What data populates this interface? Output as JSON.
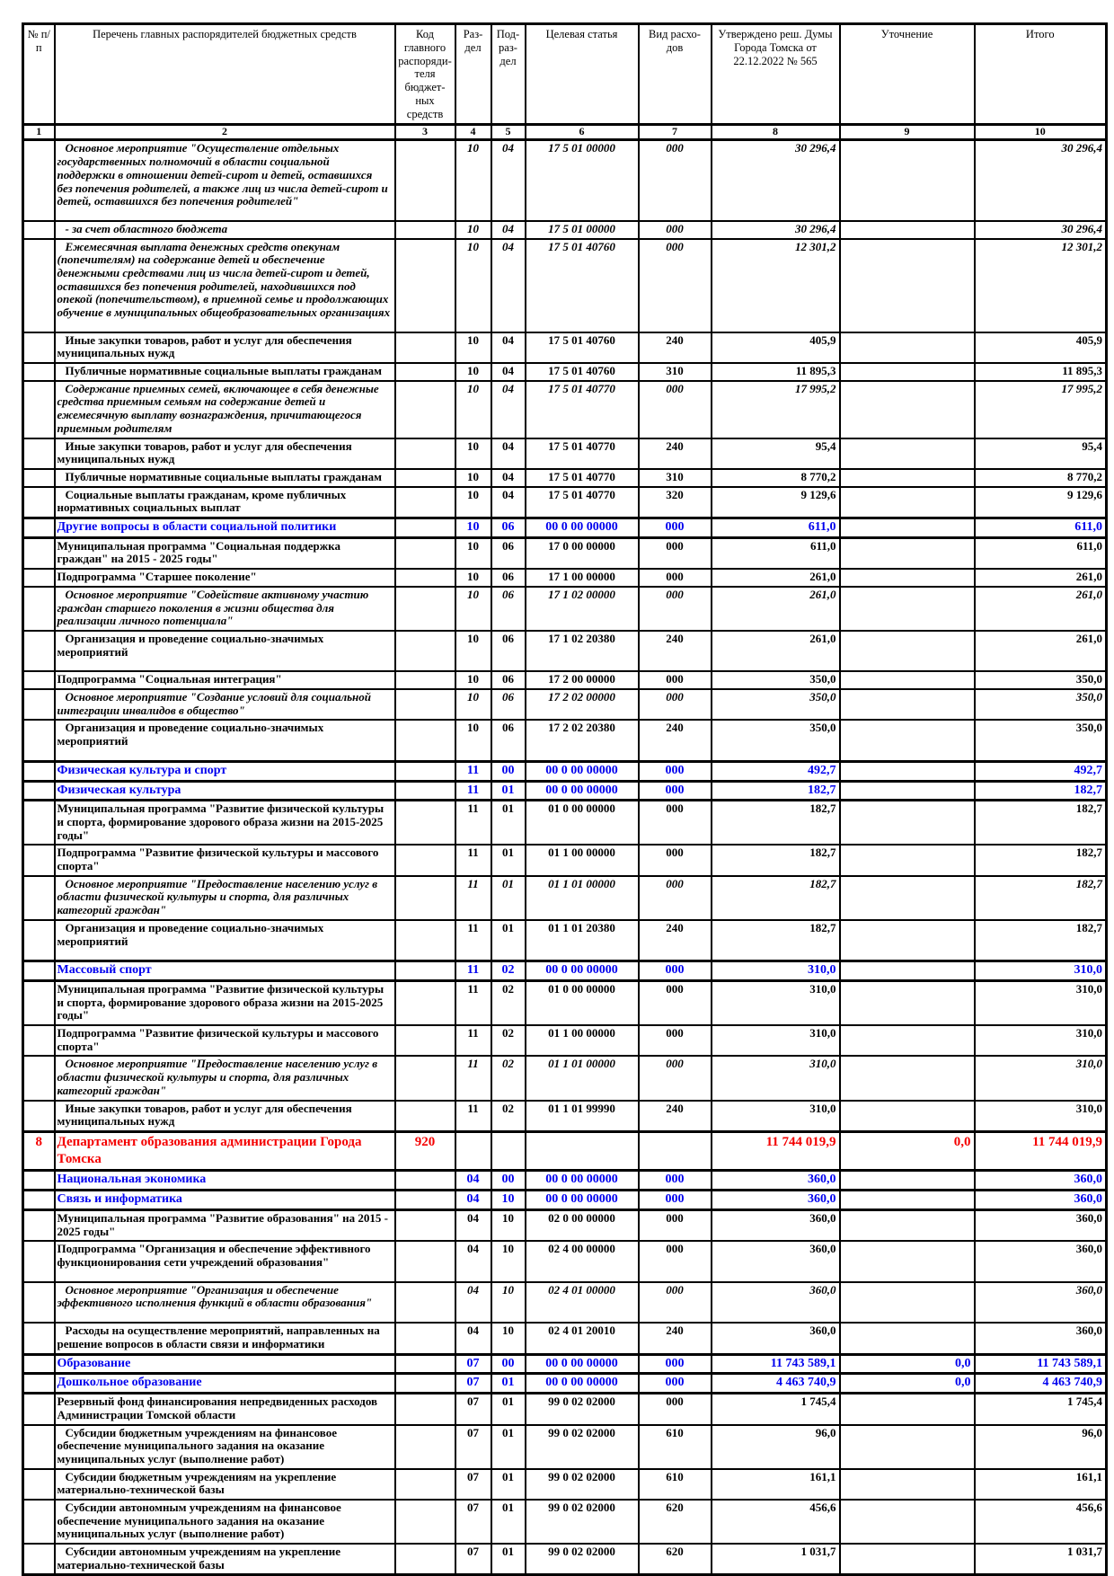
{
  "colors": {
    "section_blue": "#0000ee",
    "department_red": "#f40000",
    "grid_black": "#000000"
  },
  "table": {
    "header": {
      "cells": [
        {
          "label": "№ п/п"
        },
        {
          "label": "Перечень главных распорядителей бюджетных средств"
        },
        {
          "label": "Код главного распоряди-теля бюджет-ных средств"
        },
        {
          "label": "Раз-дел"
        },
        {
          "label": "Под-раз-дел"
        },
        {
          "label": "Целевая статья"
        },
        {
          "label": "Вид расхо-дов"
        },
        {
          "label": "Утверждено реш. Думы Города Томска от 22.12.2022 № 565"
        },
        {
          "label": "Уточнение"
        },
        {
          "label": "Итого"
        }
      ],
      "index": [
        "1",
        "2",
        "3",
        "4",
        "5",
        "6",
        "7",
        "8",
        "9",
        "10"
      ]
    },
    "rows": [
      {
        "style": "event",
        "indent": true,
        "sp": true,
        "num": "",
        "name": "Основное мероприятие \"Осуществление отдельных государственных полномочий в области социальной поддержки в отношении детей-сирот и детей, оставшихся без попечения родителей, а также лиц из числа детей-сирот и детей, оставшихся без попечения родителей\"",
        "gk": "",
        "rz": "10",
        "pr": "04",
        "cs": "17 5 01 00000",
        "vr": "000",
        "app": "30 296,4",
        "clar": "",
        "tot": "30 296,4"
      },
      {
        "style": "ital",
        "indent": true,
        "num": "",
        "name": "- за счет областного бюджета",
        "gk": "",
        "rz": "10",
        "pr": "04",
        "cs": "17 5 01 00000",
        "vr": "000",
        "app": "30 296,4",
        "clar": "",
        "tot": "30 296,4"
      },
      {
        "style": "ital",
        "indent": true,
        "num": "",
        "name": "Ежемесячная выплата денежных средств опекунам (попечителям) на содержание детей и обеспечение денежными средствами лиц из числа детей-сирот и детей, оставшихся без попечения родителей, находившихся под опекой (попечительством), в приемной семье и продолжающих обучение в муниципальных общеобразовательных организациях",
        "gk": "",
        "rz": "10",
        "pr": "04",
        "cs": "17 5 01 40760",
        "vr": "000",
        "app": "12 301,2",
        "clar": "",
        "tot": "12 301,2",
        "sp": true
      },
      {
        "style": "detail",
        "indent": true,
        "num": "",
        "name": "Иные закупки товаров, работ и услуг для обеспечения муниципальных нужд",
        "gk": "",
        "rz": "10",
        "pr": "04",
        "cs": "17 5 01 40760",
        "vr": "240",
        "app": "405,9",
        "clar": "",
        "tot": "405,9"
      },
      {
        "style": "detail",
        "indent": true,
        "num": "",
        "name": "Публичные нормативные социальные выплаты гражданам",
        "gk": "",
        "rz": "10",
        "pr": "04",
        "cs": "17 5 01 40760",
        "vr": "310",
        "app": "11 895,3",
        "clar": "",
        "tot": "11 895,3"
      },
      {
        "style": "ital",
        "indent": true,
        "num": "",
        "name": "Содержание приемных семей, включающее в себя денежные средства приемным семьям на содержание детей и ежемесячную выплату вознаграждения, причитающегося приемным родителям",
        "gk": "",
        "rz": "10",
        "pr": "04",
        "cs": "17 5 01 40770",
        "vr": "000",
        "app": "17 995,2",
        "clar": "",
        "tot": "17 995,2"
      },
      {
        "style": "detail",
        "indent": true,
        "num": "",
        "name": "Иные закупки товаров, работ и услуг для обеспечения муниципальных нужд",
        "gk": "",
        "rz": "10",
        "pr": "04",
        "cs": "17 5 01 40770",
        "vr": "240",
        "app": "95,4",
        "clar": "",
        "tot": "95,4"
      },
      {
        "style": "detail",
        "indent": true,
        "num": "",
        "name": "Публичные нормативные социальные выплаты гражданам",
        "gk": "",
        "rz": "10",
        "pr": "04",
        "cs": "17 5 01 40770",
        "vr": "310",
        "app": "8 770,2",
        "clar": "",
        "tot": "8 770,2"
      },
      {
        "style": "detail",
        "indent": true,
        "num": "",
        "name": "Социальные выплаты гражданам, кроме публичных нормативных социальных выплат",
        "gk": "",
        "rz": "10",
        "pr": "04",
        "cs": "17 5 01 40770",
        "vr": "320",
        "app": "9 129,6",
        "clar": "",
        "tot": "9 129,6"
      },
      {
        "style": "section",
        "num": "",
        "name": "Другие вопросы в области социальной политики",
        "gk": "",
        "rz": "10",
        "pr": "06",
        "cs": "00 0 00 00000",
        "vr": "000",
        "app": "611,0",
        "clar": "",
        "tot": "611,0"
      },
      {
        "style": "prog",
        "num": "",
        "name": "Муниципальная программа \"Социальная поддержка граждан\" на 2015 - 2025 годы\"",
        "gk": "",
        "rz": "10",
        "pr": "06",
        "cs": "17 0 00 00000",
        "vr": "000",
        "app": "611,0",
        "clar": "",
        "tot": "611,0"
      },
      {
        "style": "prog",
        "num": "",
        "name": "Подпрограмма \"Старшее поколение\"",
        "gk": "",
        "rz": "10",
        "pr": "06",
        "cs": "17 1 00 00000",
        "vr": "000",
        "app": "261,0",
        "clar": "",
        "tot": "261,0"
      },
      {
        "style": "event",
        "indent": true,
        "num": "",
        "name": "Основное мероприятие \"Содействие активному участию граждан старшего поколения в жизни общества для реализации личного потенциала\"",
        "gk": "",
        "rz": "10",
        "pr": "06",
        "cs": "17 1 02 00000",
        "vr": "000",
        "app": "261,0",
        "clar": "",
        "tot": "261,0"
      },
      {
        "style": "detail",
        "indent": true,
        "sp": true,
        "num": "",
        "name": "Организация и проведение социально-значимых мероприятий",
        "gk": "",
        "rz": "10",
        "pr": "06",
        "cs": "17 1 02 20380",
        "vr": "240",
        "app": "261,0",
        "clar": "",
        "tot": "261,0"
      },
      {
        "style": "prog",
        "num": "",
        "name": "Подпрограмма \"Социальная интеграция\"",
        "gk": "",
        "rz": "10",
        "pr": "06",
        "cs": "17 2 00 00000",
        "vr": "000",
        "app": "350,0",
        "clar": "",
        "tot": "350,0"
      },
      {
        "style": "event",
        "indent": true,
        "num": "",
        "name": "Основное мероприятие \"Создание условий для социальной интеграции инвалидов в общество\"",
        "gk": "",
        "rz": "10",
        "pr": "06",
        "cs": "17 2 02 00000",
        "vr": "000",
        "app": "350,0",
        "clar": "",
        "tot": "350,0"
      },
      {
        "style": "detail",
        "indent": true,
        "sp": true,
        "num": "",
        "name": "Организация и проведение социально-значимых мероприятий",
        "gk": "",
        "rz": "10",
        "pr": "06",
        "cs": "17 2 02 20380",
        "vr": "240",
        "app": "350,0",
        "clar": "",
        "tot": "350,0"
      },
      {
        "style": "section",
        "num": "",
        "name": "Физическая культура и спорт",
        "gk": "",
        "rz": "11",
        "pr": "00",
        "cs": "00 0 00 00000",
        "vr": "000",
        "app": "492,7",
        "clar": "",
        "tot": "492,7"
      },
      {
        "style": "section",
        "num": "",
        "name": "Физическая культура",
        "gk": "",
        "rz": "11",
        "pr": "01",
        "cs": "00 0 00 00000",
        "vr": "000",
        "app": "182,7",
        "clar": "",
        "tot": "182,7"
      },
      {
        "style": "prog",
        "num": "",
        "name": "Муниципальная программа \"Развитие физической культуры и спорта, формирование здорового образа жизни на 2015-2025 годы\"",
        "gk": "",
        "rz": "11",
        "pr": "01",
        "cs": "01 0 00 00000",
        "vr": "000",
        "app": "182,7",
        "clar": "",
        "tot": "182,7"
      },
      {
        "style": "prog",
        "num": "",
        "name": "Подпрограмма \"Развитие физической культуры и массового спорта\"",
        "gk": "",
        "rz": "11",
        "pr": "01",
        "cs": "01 1 00 00000",
        "vr": "000",
        "app": "182,7",
        "clar": "",
        "tot": "182,7"
      },
      {
        "style": "event",
        "indent": true,
        "num": "",
        "name": "Основное мероприятие \"Предоставление населению услуг в области физической культуры и спорта, для различных категорий граждан\"",
        "gk": "",
        "rz": "11",
        "pr": "01",
        "cs": "01 1 01 00000",
        "vr": "000",
        "app": "182,7",
        "clar": "",
        "tot": "182,7"
      },
      {
        "style": "detail",
        "indent": true,
        "sp": true,
        "num": "",
        "name": "Организация и проведение социально-значимых мероприятий",
        "gk": "",
        "rz": "11",
        "pr": "01",
        "cs": "01 1 01 20380",
        "vr": "240",
        "app": "182,7",
        "clar": "",
        "tot": "182,7"
      },
      {
        "style": "section",
        "num": "",
        "name": "Массовый спорт",
        "gk": "",
        "rz": "11",
        "pr": "02",
        "cs": "00 0 00 00000",
        "vr": "000",
        "app": "310,0",
        "clar": "",
        "tot": "310,0"
      },
      {
        "style": "prog",
        "num": "",
        "name": "Муниципальная программа \"Развитие физической культуры и спорта, формирование здорового образа жизни на 2015-2025 годы\"",
        "gk": "",
        "rz": "11",
        "pr": "02",
        "cs": "01 0 00 00000",
        "vr": "000",
        "app": "310,0",
        "clar": "",
        "tot": "310,0"
      },
      {
        "style": "prog",
        "num": "",
        "name": "Подпрограмма \"Развитие физической культуры и массового спорта\"",
        "gk": "",
        "rz": "11",
        "pr": "02",
        "cs": "01 1 00 00000",
        "vr": "000",
        "app": "310,0",
        "clar": "",
        "tot": "310,0"
      },
      {
        "style": "event",
        "indent": true,
        "num": "",
        "name": "Основное мероприятие \"Предоставление населению услуг в области физической культуры и спорта, для различных категорий граждан\"",
        "gk": "",
        "rz": "11",
        "pr": "02",
        "cs": "01 1 01 00000",
        "vr": "000",
        "app": "310,0",
        "clar": "",
        "tot": "310,0"
      },
      {
        "style": "detail",
        "indent": true,
        "num": "",
        "name": "Иные закупки товаров, работ и услуг для обеспечения муниципальных нужд",
        "gk": "",
        "rz": "11",
        "pr": "02",
        "cs": "01 1 01 99990",
        "vr": "240",
        "app": "310,0",
        "clar": "",
        "tot": "310,0"
      },
      {
        "style": "dept",
        "num": "8",
        "name": "Департамент образования администрации Города Томска",
        "gk": "920",
        "rz": "",
        "pr": "",
        "cs": "",
        "vr": "",
        "app": "11 744 019,9",
        "clar": "0,0",
        "tot": "11 744 019,9"
      },
      {
        "style": "section",
        "num": "",
        "name": "Национальная экономика",
        "gk": "",
        "rz": "04",
        "pr": "00",
        "cs": "00 0 00 00000",
        "vr": "000",
        "app": "360,0",
        "clar": "",
        "tot": "360,0"
      },
      {
        "style": "section",
        "num": "",
        "name": "Связь и информатика",
        "gk": "",
        "rz": "04",
        "pr": "10",
        "cs": "00 0 00 00000",
        "vr": "000",
        "app": "360,0",
        "clar": "",
        "tot": "360,0"
      },
      {
        "style": "prog",
        "num": "",
        "name": "Муниципальная программа \"Развитие образования\" на 2015 - 2025 годы\"",
        "gk": "",
        "rz": "04",
        "pr": "10",
        "cs": "02 0 00 00000",
        "vr": "000",
        "app": "360,0",
        "clar": "",
        "tot": "360,0"
      },
      {
        "style": "prog",
        "sp": true,
        "num": "",
        "name": "Подпрограмма \"Организация и обеспечение эффективного функционирования сети учреждений образования\"",
        "gk": "",
        "rz": "04",
        "pr": "10",
        "cs": "02 4 00 00000",
        "vr": "000",
        "app": "360,0",
        "clar": "",
        "tot": "360,0"
      },
      {
        "style": "event",
        "indent": true,
        "sp": true,
        "num": "",
        "name": "Основное мероприятие \"Организация и обеспечение эффективного исполнения функций в области образования\"",
        "gk": "",
        "rz": "04",
        "pr": "10",
        "cs": "02 4 01 00000",
        "vr": "000",
        "app": "360,0",
        "clar": "",
        "tot": "360,0"
      },
      {
        "style": "detail",
        "indent": true,
        "num": "",
        "name": "Расходы на осуществление мероприятий, направленных на решение вопросов в области связи и информатики",
        "gk": "",
        "rz": "04",
        "pr": "10",
        "cs": "02 4 01 20010",
        "vr": "240",
        "app": "360,0",
        "clar": "",
        "tot": "360,0"
      },
      {
        "style": "section",
        "num": "",
        "name": "Образование",
        "gk": "",
        "rz": "07",
        "pr": "00",
        "cs": "00 0 00 00000",
        "vr": "000",
        "app": "11 743 589,1",
        "clar": "0,0",
        "tot": "11 743 589,1"
      },
      {
        "style": "section",
        "num": "",
        "name": "Дошкольное образование",
        "gk": "",
        "rz": "07",
        "pr": "01",
        "cs": "00 0 00 00000",
        "vr": "000",
        "app": "4 463 740,9",
        "clar": "0,0",
        "tot": "4 463 740,9"
      },
      {
        "style": "prog",
        "num": "",
        "name": "Резервный фонд финансирования непредвиденных расходов Администрации Томской области",
        "gk": "",
        "rz": "07",
        "pr": "01",
        "cs": "99 0 02 02000",
        "vr": "000",
        "app": "1 745,4",
        "clar": "",
        "tot": "1 745,4"
      },
      {
        "style": "detail",
        "indent": true,
        "num": "",
        "name": "Субсидии бюджетным учреждениям на финансовое обеспечение муниципального задания на оказание муниципальных услуг (выполнение работ)",
        "gk": "",
        "rz": "07",
        "pr": "01",
        "cs": "99 0 02 02000",
        "vr": "610",
        "app": "96,0",
        "clar": "",
        "tot": "96,0"
      },
      {
        "style": "detail",
        "indent": true,
        "num": "",
        "name": "Субсидии бюджетным учреждениям на укрепление материально-технической базы",
        "gk": "",
        "rz": "07",
        "pr": "01",
        "cs": "99 0 02 02000",
        "vr": "610",
        "app": "161,1",
        "clar": "",
        "tot": "161,1"
      },
      {
        "style": "detail",
        "indent": true,
        "num": "",
        "name": "Субсидии автономным учреждениям на финансовое обеспечение муниципального задания на оказание муниципальных услуг (выполнение работ)",
        "gk": "",
        "rz": "07",
        "pr": "01",
        "cs": "99 0 02 02000",
        "vr": "620",
        "app": "456,6",
        "clar": "",
        "tot": "456,6"
      },
      {
        "style": "detail",
        "indent": true,
        "num": "",
        "name": "Субсидии автономным учреждениям на укрепление материально-технической базы",
        "gk": "",
        "rz": "07",
        "pr": "01",
        "cs": "99 0 02 02000",
        "vr": "620",
        "app": "1 031,7",
        "clar": "",
        "tot": "1 031,7"
      }
    ]
  }
}
